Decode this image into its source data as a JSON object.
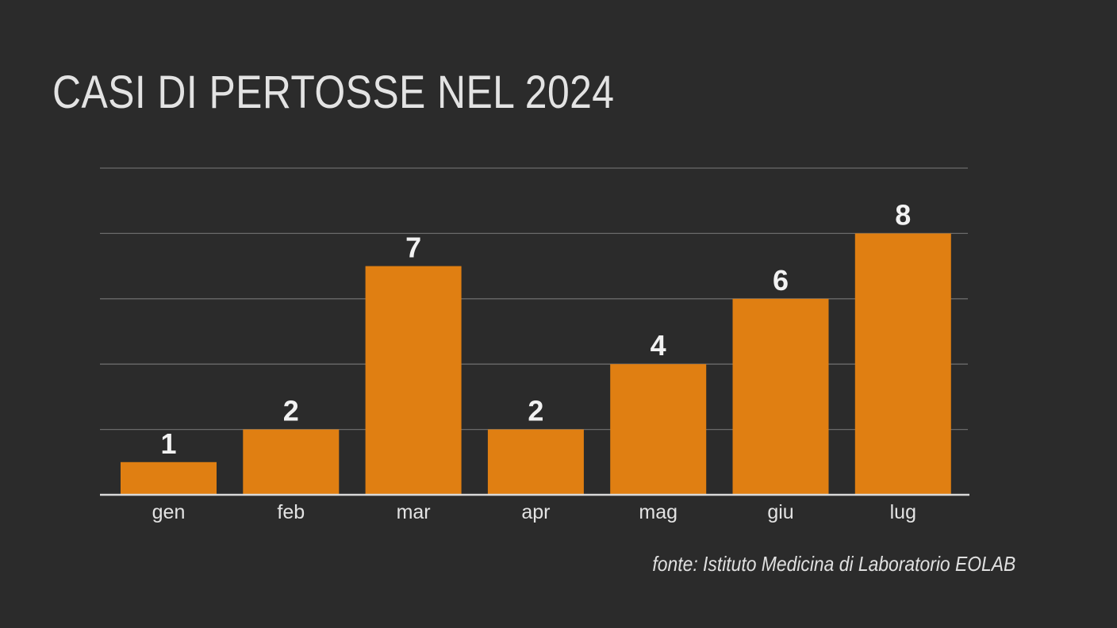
{
  "title": "CASI DI PERTOSSE NEL 2024",
  "source": "fonte: Istituto Medicina di Laboratorio EOLAB",
  "colors": {
    "background": "#2b2b2b",
    "bar": "#e07f12",
    "grid": "#6a6a6a",
    "axis": "#d9d9d9",
    "text": "#e3e3e3"
  },
  "chart_data": {
    "type": "bar",
    "title": "CASI DI PERTOSSE NEL 2024",
    "categories": [
      "gen",
      "feb",
      "mar",
      "apr",
      "mag",
      "giu",
      "lug"
    ],
    "values": [
      1,
      2,
      7,
      2,
      4,
      6,
      8
    ],
    "data_labels": [
      "1",
      "2",
      "7",
      "2",
      "4",
      "6",
      "8"
    ],
    "xlabel": "",
    "ylabel": "",
    "ylim": [
      0,
      10
    ],
    "grid": true,
    "legend": "none"
  }
}
